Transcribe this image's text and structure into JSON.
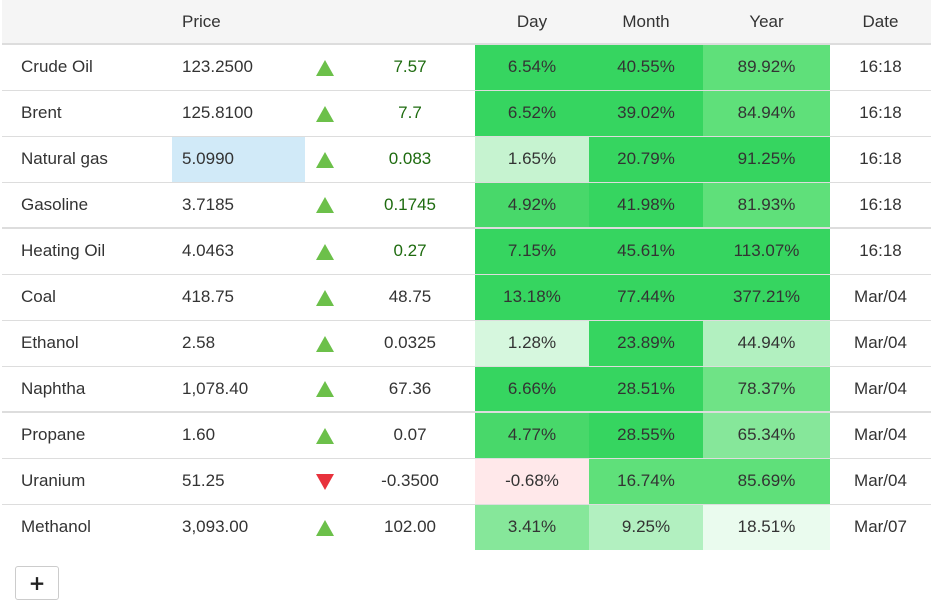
{
  "colors": {
    "up_arrow": "#6cc04a",
    "down_arrow": "#e8323c",
    "price_highlight": "#d1eaf8",
    "heat_strong": "#36d560",
    "heat_medium": "#5fe07a",
    "heat_light": "#b2f0c0",
    "heat_pale": "#d6f7de",
    "heat_negative": "#ffe8ea"
  },
  "table": {
    "headers": {
      "name": "",
      "price": "Price",
      "arrow": "",
      "change": "",
      "day": "Day",
      "month": "Month",
      "year": "Year",
      "date": "Date"
    },
    "rows": [
      {
        "name": "Crude Oil",
        "price": "123.2500",
        "direction": "up",
        "change": "7.57",
        "day": "6.54%",
        "month": "40.55%",
        "year": "89.92%",
        "date": "16:18"
      },
      {
        "name": "Brent",
        "price": "125.8100",
        "direction": "up",
        "change": "7.7",
        "day": "6.52%",
        "month": "39.02%",
        "year": "84.94%",
        "date": "16:18"
      },
      {
        "name": "Natural gas",
        "price": "5.0990",
        "direction": "up",
        "change": "0.083",
        "day": "1.65%",
        "month": "20.79%",
        "year": "91.25%",
        "date": "16:18"
      },
      {
        "name": "Gasoline",
        "price": "3.7185",
        "direction": "up",
        "change": "0.1745",
        "day": "4.92%",
        "month": "41.98%",
        "year": "81.93%",
        "date": "16:18"
      },
      {
        "name": "Heating Oil",
        "price": "4.0463",
        "direction": "up",
        "change": "0.27",
        "day": "7.15%",
        "month": "45.61%",
        "year": "113.07%",
        "date": "16:18"
      },
      {
        "name": "Coal",
        "price": "418.75",
        "direction": "up",
        "change": "48.75",
        "day": "13.18%",
        "month": "77.44%",
        "year": "377.21%",
        "date": "Mar/04"
      },
      {
        "name": "Ethanol",
        "price": "2.58",
        "direction": "up",
        "change": "0.0325",
        "day": "1.28%",
        "month": "23.89%",
        "year": "44.94%",
        "date": "Mar/04"
      },
      {
        "name": "Naphtha",
        "price": "1,078.40",
        "direction": "up",
        "change": "67.36",
        "day": "6.66%",
        "month": "28.51%",
        "year": "78.37%",
        "date": "Mar/04"
      },
      {
        "name": "Propane",
        "price": "1.60",
        "direction": "up",
        "change": "0.07",
        "day": "4.77%",
        "month": "28.55%",
        "year": "65.34%",
        "date": "Mar/04"
      },
      {
        "name": "Uranium",
        "price": "51.25",
        "direction": "down",
        "change": "-0.3500",
        "day": "-0.68%",
        "month": "16.74%",
        "year": "85.69%",
        "date": "Mar/04"
      },
      {
        "name": "Methanol",
        "price": "3,093.00",
        "direction": "up",
        "change": "102.00",
        "day": "3.41%",
        "month": "9.25%",
        "year": "18.51%",
        "date": "Mar/07"
      }
    ]
  },
  "add_button": {
    "label": "+",
    "icon": "plus-icon"
  }
}
